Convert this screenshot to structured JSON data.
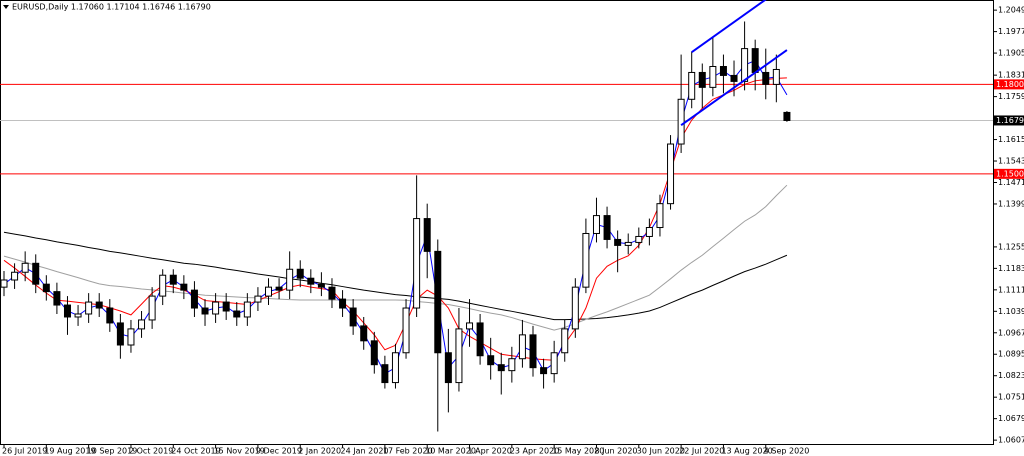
{
  "chart_data": {
    "type": "candlestick",
    "title": "EURUSD,Daily  1.17060 1.17104 1.16746 1.16790",
    "categories": [
      "26 Jul 2019",
      null,
      null,
      null,
      "19 Aug 2019",
      null,
      null,
      null,
      "10 Sep 2019",
      null,
      null,
      null,
      "2 Oct 2019",
      null,
      null,
      null,
      "24 Oct 2019",
      null,
      null,
      null,
      "15 Nov 2019",
      null,
      null,
      null,
      "9 Dec 2019",
      null,
      null,
      null,
      "2 Jan 2020",
      null,
      null,
      null,
      "24 Jan 2020",
      null,
      null,
      null,
      "17 Feb 2020",
      null,
      null,
      null,
      "10 Mar 2020",
      null,
      null,
      null,
      "1 Apr 2020",
      null,
      null,
      null,
      "23 Apr 2020",
      null,
      null,
      null,
      "15 May 2020",
      null,
      null,
      null,
      "8 Jun 2020",
      null,
      null,
      null,
      "30 Jun 2020",
      null,
      null,
      null,
      "22 Jul 2020",
      null,
      null,
      null,
      "13 Aug 2020",
      null,
      null,
      null,
      "4 Sep 2020",
      null,
      null
    ],
    "open": [
      1.112,
      1.1144,
      1.117,
      1.12,
      1.113,
      1.1105,
      1.106,
      1.102,
      1.103,
      1.107,
      1.105,
      1.1,
      1.0926,
      1.098,
      1.101,
      1.109,
      1.116,
      1.113,
      1.111,
      1.105,
      1.103,
      1.107,
      1.104,
      1.102,
      1.107,
      1.109,
      1.112,
      1.111,
      1.118,
      1.115,
      1.113,
      1.112,
      1.108,
      1.105,
      1.099,
      1.094,
      1.086,
      1.08,
      1.09,
      1.105,
      1.135,
      1.124,
      1.09,
      1.08,
      1.098,
      1.1,
      1.089,
      1.086,
      1.084,
      1.088,
      1.096,
      1.085,
      1.083,
      1.09,
      1.098,
      1.112,
      1.13,
      1.136,
      1.128,
      1.126,
      1.127,
      1.129,
      1.132,
      1.14,
      1.16,
      1.175,
      1.184,
      1.179,
      1.186,
      1.183,
      1.181,
      1.192,
      1.184,
      1.18,
      1.1706
    ],
    "high": [
      1.1174,
      1.12,
      1.124,
      1.123,
      1.116,
      1.1135,
      1.109,
      1.106,
      1.11,
      1.11,
      1.108,
      1.103,
      1.101,
      1.104,
      1.112,
      1.118,
      1.118,
      1.116,
      1.114,
      1.108,
      1.11,
      1.11,
      1.107,
      1.11,
      1.112,
      1.115,
      1.115,
      1.124,
      1.121,
      1.118,
      1.117,
      1.115,
      1.111,
      1.108,
      1.102,
      1.097,
      1.089,
      1.093,
      1.108,
      1.1495,
      1.14,
      1.128,
      1.098,
      1.105,
      1.108,
      1.103,
      1.095,
      1.09,
      1.092,
      1.101,
      1.099,
      1.088,
      1.094,
      1.101,
      1.115,
      1.135,
      1.142,
      1.139,
      1.131,
      1.13,
      1.132,
      1.135,
      1.143,
      1.163,
      1.19,
      1.191,
      1.187,
      1.196,
      1.19,
      1.188,
      1.2011,
      1.195,
      1.192,
      1.19,
      1.17104
    ],
    "low": [
      1.109,
      1.1114,
      1.114,
      1.11,
      1.1075,
      1.103,
      1.096,
      1.099,
      1.1,
      1.102,
      1.097,
      1.088,
      1.09,
      1.095,
      1.098,
      1.106,
      1.11,
      1.108,
      1.102,
      1.099,
      1.1,
      1.101,
      1.099,
      1.099,
      1.104,
      1.106,
      1.108,
      1.108,
      1.112,
      1.11,
      1.109,
      1.105,
      1.102,
      1.096,
      1.091,
      1.083,
      1.078,
      1.078,
      1.088,
      1.102,
      1.115,
      1.0636,
      1.07,
      1.077,
      1.092,
      1.086,
      1.081,
      1.076,
      1.08,
      1.085,
      1.082,
      1.078,
      1.08,
      1.087,
      1.095,
      1.11,
      1.127,
      1.125,
      1.117,
      1.123,
      1.125,
      1.126,
      1.129,
      1.138,
      1.157,
      1.172,
      1.172,
      1.176,
      1.177,
      1.176,
      1.178,
      1.178,
      1.175,
      1.174,
      1.16746
    ],
    "close": [
      1.1144,
      1.117,
      1.12,
      1.113,
      1.1105,
      1.106,
      1.102,
      1.103,
      1.107,
      1.105,
      1.1,
      1.0926,
      1.098,
      1.101,
      1.109,
      1.116,
      1.113,
      1.111,
      1.105,
      1.103,
      1.107,
      1.104,
      1.102,
      1.107,
      1.109,
      1.112,
      1.111,
      1.118,
      1.115,
      1.113,
      1.112,
      1.108,
      1.105,
      1.099,
      1.094,
      1.086,
      1.08,
      1.09,
      1.105,
      1.135,
      1.124,
      1.09,
      1.08,
      1.098,
      1.1,
      1.089,
      1.086,
      1.084,
      1.088,
      1.096,
      1.085,
      1.083,
      1.09,
      1.098,
      1.112,
      1.13,
      1.136,
      1.128,
      1.126,
      1.127,
      1.129,
      1.132,
      1.14,
      1.16,
      1.175,
      1.184,
      1.179,
      1.186,
      1.183,
      1.181,
      1.192,
      1.184,
      1.18,
      1.185,
      1.1679
    ],
    "series": [
      {
        "color": "#000000",
        "values": [
          1.1304,
          1.1298,
          1.1292,
          1.1285,
          1.1279,
          1.1272,
          1.1266,
          1.126,
          1.1253,
          1.1247,
          1.124,
          1.1235,
          1.1229,
          1.1223,
          1.1217,
          1.1212,
          1.1206,
          1.12,
          1.1197,
          1.1192,
          1.1187,
          1.1181,
          1.1176,
          1.117,
          1.1164,
          1.1159,
          1.1154,
          1.1148,
          1.1144,
          1.1139,
          1.1133,
          1.1128,
          1.1122,
          1.1116,
          1.111,
          1.1105,
          1.11,
          1.1095,
          1.1092,
          1.1088,
          1.1085,
          1.1082,
          1.1079,
          1.1073,
          1.1066,
          1.1059,
          1.1052,
          1.1045,
          1.1039,
          1.1032,
          1.1025,
          1.1018,
          1.1011,
          1.1011,
          1.1012,
          1.1013,
          1.1015,
          1.1018,
          1.1022,
          1.1027,
          1.1033,
          1.104,
          1.1052,
          1.1067,
          1.1082,
          1.1097,
          1.111,
          1.1126,
          1.1141,
          1.1157,
          1.1172,
          1.1184,
          1.1197,
          1.1212,
          1.1227
        ]
      },
      {
        "color": "#a0a0a0",
        "values": [
          1.1224,
          1.1214,
          1.1204,
          1.1193,
          1.1183,
          1.1172,
          1.1162,
          1.1152,
          1.1141,
          1.1131,
          1.1125,
          1.1122,
          1.1118,
          1.1114,
          1.1111,
          1.1107,
          1.1104,
          1.11,
          1.1097,
          1.1093,
          1.1091,
          1.1089,
          1.1087,
          1.1085,
          1.1084,
          1.1082,
          1.108,
          1.1078,
          1.1077,
          1.1077,
          1.1077,
          1.1077,
          1.1077,
          1.1077,
          1.1077,
          1.1077,
          1.1077,
          1.1077,
          1.1076,
          1.1072,
          1.1069,
          1.1065,
          1.1062,
          1.1055,
          1.1048,
          1.104,
          1.1033,
          1.1027,
          1.1018,
          1.1007,
          1.0996,
          1.0986,
          1.0976,
          1.0985,
          1.0998,
          1.1012,
          1.1025,
          1.1037,
          1.1051,
          1.1065,
          1.1079,
          1.1093,
          1.112,
          1.1148,
          1.1177,
          1.1203,
          1.1227,
          1.1256,
          1.1284,
          1.1313,
          1.1341,
          1.1362,
          1.139,
          1.1427,
          1.1462
        ]
      },
      {
        "color": "#ff0000",
        "values": [
          1.121,
          1.1184,
          1.1156,
          1.1127,
          1.11,
          1.1076,
          1.1073,
          1.1069,
          1.1065,
          1.1061,
          1.1051,
          1.104,
          1.1027,
          1.1063,
          1.11,
          1.1125,
          1.112,
          1.111,
          1.1095,
          1.1075,
          1.1072,
          1.1069,
          1.1065,
          1.1062,
          1.1075,
          1.109,
          1.1105,
          1.112,
          1.1127,
          1.112,
          1.1115,
          1.111,
          1.107,
          1.104,
          1.1,
          1.096,
          1.091,
          1.0925,
          1.1,
          1.108,
          1.111,
          1.109,
          1.105,
          1.098,
          1.0955,
          1.0935,
          1.0915,
          1.0895,
          1.089,
          1.0885,
          1.088,
          1.0877,
          1.0875,
          1.093,
          1.098,
          1.105,
          1.115,
          1.119,
          1.121,
          1.1225,
          1.126,
          1.132,
          1.14,
          1.151,
          1.162,
          1.168,
          1.172,
          1.175,
          1.1765,
          1.178,
          1.18,
          1.1812,
          1.1816,
          1.182,
          1.1822
        ]
      },
      {
        "color": "#0000ff",
        "values": [
          1.113,
          1.1157,
          1.1185,
          1.1165,
          1.1118,
          1.1083,
          1.104,
          1.1025,
          1.105,
          1.106,
          1.1025,
          1.0963,
          1.0953,
          1.0995,
          1.105,
          1.1125,
          1.1145,
          1.112,
          1.108,
          1.104,
          1.105,
          1.1055,
          1.103,
          1.1045,
          1.108,
          1.1105,
          1.1115,
          1.1145,
          1.1165,
          1.114,
          1.1125,
          1.11,
          1.1065,
          1.102,
          1.0965,
          1.09,
          1.083,
          1.085,
          1.0975,
          1.12,
          1.1295,
          1.107,
          1.085,
          1.089,
          1.099,
          1.0945,
          1.0875,
          1.085,
          1.086,
          1.092,
          1.0905,
          1.084,
          1.0865,
          1.094,
          1.105,
          1.121,
          1.133,
          1.132,
          1.127,
          1.1265,
          1.128,
          1.1305,
          1.136,
          1.15,
          1.1675,
          1.1795,
          1.1815,
          1.1825,
          1.1845,
          1.182,
          1.1865,
          1.188,
          1.182,
          1.1825,
          1.1765
        ]
      }
    ],
    "trendlines": [
      {
        "color": "#0000ff",
        "x": [
          65,
          73
        ],
        "y": [
          1.1908,
          1.211
        ]
      },
      {
        "color": "#0000ff",
        "x": [
          64,
          74
        ],
        "y": [
          1.1663,
          1.1915
        ]
      }
    ],
    "hlines": [
      {
        "value": 1.18,
        "label": "1.18000",
        "color": "#ff0000"
      },
      {
        "value": 1.15,
        "label": "1.15000",
        "color": "#ff0000"
      }
    ],
    "price_line": {
      "value": 1.1679,
      "label": "1.16790",
      "color": "#000000"
    },
    "ylim": [
      1.0594,
      1.2083
    ],
    "yticks": [
      {
        "value": 1.2049,
        "label": "1.20490"
      },
      {
        "value": 1.1977,
        "label": "1.19770"
      },
      {
        "value": 1.1905,
        "label": "1.19050"
      },
      {
        "value": 1.1831,
        "label": "1.18310"
      },
      {
        "value": 1.1759,
        "label": "1.17590"
      },
      {
        "value": 1.1615,
        "label": "1.16150"
      },
      {
        "value": 1.1543,
        "label": "1.15430"
      },
      {
        "value": 1.1471,
        "label": "1.14710"
      },
      {
        "value": 1.1399,
        "label": "1.13990"
      },
      {
        "value": 1.1255,
        "label": "1.12550"
      },
      {
        "value": 1.1183,
        "label": "1.11830"
      },
      {
        "value": 1.1111,
        "label": "1.11110"
      },
      {
        "value": 1.1039,
        "label": "1.10390"
      },
      {
        "value": 1.0967,
        "label": "1.09670"
      },
      {
        "value": 1.0895,
        "label": "1.08950"
      },
      {
        "value": 1.0823,
        "label": "1.08230"
      },
      {
        "value": 1.0751,
        "label": "1.07510"
      },
      {
        "value": 1.0679,
        "label": "1.06790"
      },
      {
        "value": 1.0607,
        "label": "1.06070"
      }
    ],
    "grid": false,
    "bull_color": "#ffffff",
    "bear_color": "#000000"
  }
}
